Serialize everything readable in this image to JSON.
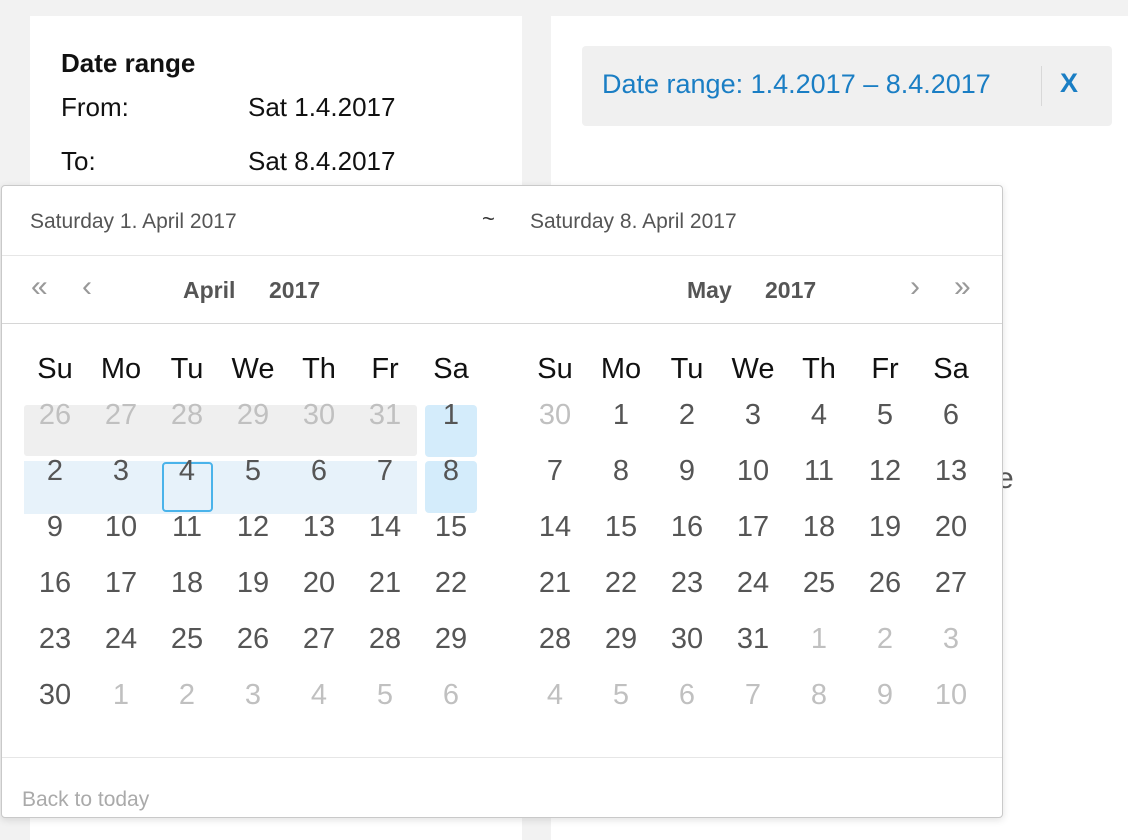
{
  "filter": {
    "title": "Date range",
    "from_label": "From:",
    "from_value": "Sat 1.4.2017",
    "to_label": "To:",
    "to_value": "Sat 8.4.2017"
  },
  "chip": {
    "label": "Date range:",
    "value": "1.4.2017 – 8.4.2017",
    "close_label": "X",
    "accent_color": "#1a7ec4"
  },
  "hidden_letter": "e",
  "picker": {
    "range_start": "Saturday 1. April 2017",
    "range_separator": "~",
    "range_end": "Saturday 8. April 2017",
    "nav": {
      "prev_year": "«",
      "prev_month": "‹",
      "next_month": "›",
      "next_year": "»"
    },
    "weekdays": [
      "Su",
      "Mo",
      "Tu",
      "We",
      "Th",
      "Fr",
      "Sa"
    ],
    "months": [
      {
        "month": "April",
        "year": "2017",
        "weeks": [
          [
            "26",
            "27",
            "28",
            "29",
            "30",
            "31",
            "1"
          ],
          [
            "2",
            "3",
            "4",
            "5",
            "6",
            "7",
            "8"
          ],
          [
            "9",
            "10",
            "11",
            "12",
            "13",
            "14",
            "15"
          ],
          [
            "16",
            "17",
            "18",
            "19",
            "20",
            "21",
            "22"
          ],
          [
            "23",
            "24",
            "25",
            "26",
            "27",
            "28",
            "29"
          ],
          [
            "30",
            "1",
            "2",
            "3",
            "4",
            "5",
            "6"
          ]
        ]
      },
      {
        "month": "May",
        "year": "2017",
        "weeks": [
          [
            "30",
            "1",
            "2",
            "3",
            "4",
            "5",
            "6"
          ],
          [
            "7",
            "8",
            "9",
            "10",
            "11",
            "12",
            "13"
          ],
          [
            "14",
            "15",
            "16",
            "17",
            "18",
            "19",
            "20"
          ],
          [
            "21",
            "22",
            "23",
            "24",
            "25",
            "26",
            "27"
          ],
          [
            "28",
            "29",
            "30",
            "31",
            "1",
            "2",
            "3"
          ],
          [
            "4",
            "5",
            "6",
            "7",
            "8",
            "9",
            "10"
          ]
        ]
      }
    ],
    "back_to_today": "Back to today",
    "colors": {
      "range_fill": "#e7f2fa",
      "endpoint_fill": "#d4ecfb",
      "today_border": "#4ab3ea"
    }
  }
}
